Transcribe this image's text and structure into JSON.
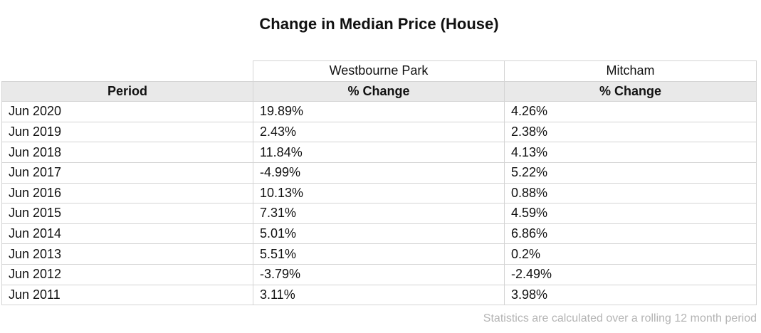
{
  "title": "Change in Median Price (House)",
  "suburbs": [
    "Westbourne Park",
    "Mitcham"
  ],
  "headers": [
    "Period",
    "% Change",
    "% Change"
  ],
  "rows": [
    {
      "period": "Jun 2020",
      "westbourne": "19.89%",
      "mitcham": "4.26%"
    },
    {
      "period": "Jun 2019",
      "westbourne": "2.43%",
      "mitcham": "2.38%"
    },
    {
      "period": "Jun 2018",
      "westbourne": "11.84%",
      "mitcham": "4.13%"
    },
    {
      "period": "Jun 2017",
      "westbourne": "-4.99%",
      "mitcham": "5.22%"
    },
    {
      "period": "Jun 2016",
      "westbourne": "10.13%",
      "mitcham": "0.88%"
    },
    {
      "period": "Jun 2015",
      "westbourne": "7.31%",
      "mitcham": "4.59%"
    },
    {
      "period": "Jun 2014",
      "westbourne": "5.01%",
      "mitcham": "6.86%"
    },
    {
      "period": "Jun 2013",
      "westbourne": "5.51%",
      "mitcham": "0.2%"
    },
    {
      "period": "Jun 2012",
      "westbourne": "-3.79%",
      "mitcham": "-2.49%"
    },
    {
      "period": "Jun 2011",
      "westbourne": "3.11%",
      "mitcham": "3.98%"
    }
  ],
  "footnote": "Statistics are calculated over a rolling 12 month period",
  "colors": {
    "header_background": "#e9e9e9",
    "border": "#d4d4d4",
    "footnote_text": "#b4b4b4"
  }
}
